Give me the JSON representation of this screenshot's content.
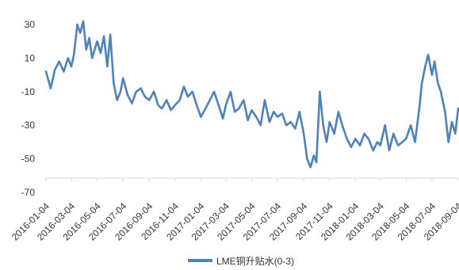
{
  "chart_data": {
    "type": "line",
    "title": "",
    "xlabel": "",
    "ylabel": "",
    "ylim": [
      -70,
      30
    ],
    "yticks": [
      30,
      10,
      -10,
      -30,
      -50,
      -70
    ],
    "x_ticks": [
      "2016-01-04",
      "2016-03-04",
      "2016-05-04",
      "2016-07-04",
      "2016-09-04",
      "2016-11-04",
      "2017-01-04",
      "2017-03-04",
      "2017-05-04",
      "2017-07-04",
      "2017-09-04",
      "2017-11-04",
      "2018-01-04",
      "2018-03-04",
      "2018-05-04",
      "2018-07-04",
      "2018-09-04"
    ],
    "grid": false,
    "legend_position": "bottom",
    "colors": {
      "series": "#4F81BD",
      "axis": "#d9d9d9",
      "text": "#333333"
    },
    "series": [
      {
        "name": "LME铜升贴水(0-3)",
        "x": [
          "2016-01-04",
          "2016-01-15",
          "2016-01-25",
          "2016-02-04",
          "2016-02-15",
          "2016-02-25",
          "2016-03-04",
          "2016-03-10",
          "2016-03-18",
          "2016-03-25",
          "2016-04-01",
          "2016-04-08",
          "2016-04-15",
          "2016-04-22",
          "2016-05-04",
          "2016-05-12",
          "2016-05-20",
          "2016-05-28",
          "2016-06-04",
          "2016-06-12",
          "2016-06-20",
          "2016-06-28",
          "2016-07-04",
          "2016-07-15",
          "2016-07-25",
          "2016-08-04",
          "2016-08-15",
          "2016-08-25",
          "2016-09-04",
          "2016-09-15",
          "2016-09-25",
          "2016-10-04",
          "2016-10-15",
          "2016-10-25",
          "2016-11-04",
          "2016-11-15",
          "2016-11-25",
          "2016-12-04",
          "2016-12-15",
          "2016-12-25",
          "2017-01-04",
          "2017-01-15",
          "2017-01-25",
          "2017-02-04",
          "2017-02-15",
          "2017-02-25",
          "2017-03-04",
          "2017-03-15",
          "2017-03-25",
          "2017-04-04",
          "2017-04-15",
          "2017-04-25",
          "2017-05-04",
          "2017-05-15",
          "2017-05-25",
          "2017-06-04",
          "2017-06-15",
          "2017-06-25",
          "2017-07-04",
          "2017-07-15",
          "2017-07-25",
          "2017-08-04",
          "2017-08-15",
          "2017-08-25",
          "2017-09-04",
          "2017-09-12",
          "2017-09-20",
          "2017-09-28",
          "2017-10-04",
          "2017-10-12",
          "2017-10-20",
          "2017-10-28",
          "2017-11-04",
          "2017-11-15",
          "2017-11-25",
          "2017-12-04",
          "2017-12-15",
          "2017-12-25",
          "2018-01-04",
          "2018-01-15",
          "2018-01-25",
          "2018-02-04",
          "2018-02-15",
          "2018-02-25",
          "2018-03-04",
          "2018-03-15",
          "2018-03-25",
          "2018-04-04",
          "2018-04-15",
          "2018-04-25",
          "2018-05-04",
          "2018-05-15",
          "2018-05-25",
          "2018-06-04",
          "2018-06-10",
          "2018-06-18",
          "2018-06-25",
          "2018-07-04",
          "2018-07-10",
          "2018-07-18",
          "2018-07-25",
          "2018-08-04",
          "2018-08-12",
          "2018-08-20",
          "2018-08-28",
          "2018-09-04",
          "2018-09-10"
        ],
        "values": [
          2,
          -8,
          3,
          8,
          2,
          10,
          5,
          12,
          30,
          25,
          32,
          15,
          22,
          10,
          20,
          13,
          23,
          5,
          24,
          -5,
          -15,
          -10,
          -2,
          -12,
          -17,
          -10,
          -8,
          -13,
          -15,
          -10,
          -18,
          -20,
          -15,
          -21,
          -18,
          -15,
          -7,
          -13,
          -10,
          -18,
          -25,
          -20,
          -15,
          -10,
          -18,
          -26,
          -18,
          -10,
          -22,
          -20,
          -15,
          -27,
          -21,
          -25,
          -30,
          -15,
          -28,
          -22,
          -25,
          -23,
          -30,
          -28,
          -32,
          -22,
          -35,
          -50,
          -55,
          -48,
          -52,
          -10,
          -30,
          -40,
          -28,
          -35,
          -22,
          -30,
          -38,
          -43,
          -38,
          -42,
          -35,
          -38,
          -45,
          -40,
          -42,
          -30,
          -45,
          -35,
          -42,
          -40,
          -38,
          -30,
          -40,
          -20,
          -5,
          5,
          12,
          0,
          8,
          -5,
          -10,
          -22,
          -40,
          -28,
          -35,
          -20,
          -22
        ]
      }
    ]
  }
}
